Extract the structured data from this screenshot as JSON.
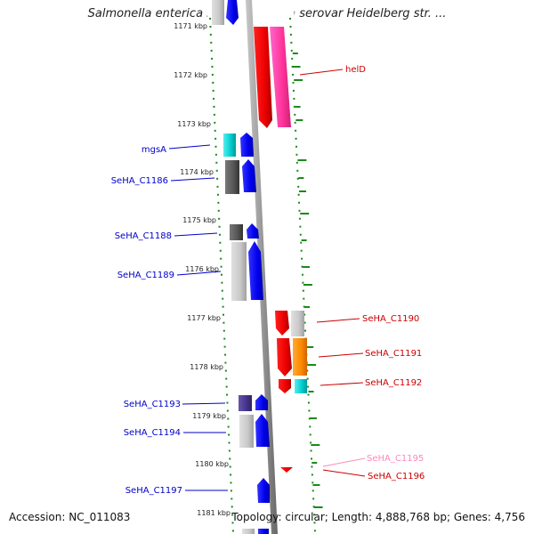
{
  "title": "Salmonella enterica subsp. enterica serovar Heidelberg str. ...",
  "accession": "Accession: NC_011083",
  "topology": "Topology: circular; Length: 4,888,768 bp; Genes: 4,756",
  "ticks": [
    "1171 kbp",
    "1172 kbp",
    "1173 kbp",
    "1174 kbp",
    "1175 kbp",
    "1176 kbp",
    "1177 kbp",
    "1178 kbp",
    "1179 kbp",
    "1180 kbp",
    "1181 kbp"
  ],
  "colors": {
    "forward_label": "#0000cc",
    "reverse_label": "#cc0000",
    "pseudo_label": "#ff88bb",
    "backbone": "#999999",
    "gc_dots": "#1a8a1a"
  },
  "genes": [
    {
      "name": "helD",
      "side": "right",
      "color": "#cc0000"
    },
    {
      "name": "mgsA",
      "side": "left",
      "color": "#0000cc"
    },
    {
      "name": "SeHA_C1186",
      "side": "left",
      "color": "#0000cc"
    },
    {
      "name": "SeHA_C1188",
      "side": "left",
      "color": "#0000cc"
    },
    {
      "name": "SeHA_C1189",
      "side": "left",
      "color": "#0000cc"
    },
    {
      "name": "SeHA_C1190",
      "side": "right",
      "color": "#cc0000"
    },
    {
      "name": "SeHA_C1191",
      "side": "right",
      "color": "#cc0000"
    },
    {
      "name": "SeHA_C1192",
      "side": "right",
      "color": "#cc0000"
    },
    {
      "name": "SeHA_C1193",
      "side": "left",
      "color": "#0000cc"
    },
    {
      "name": "SeHA_C1194",
      "side": "left",
      "color": "#0000cc"
    },
    {
      "name": "SeHA_C1195",
      "side": "right",
      "color": "#ff88bb"
    },
    {
      "name": "SeHA_C1196",
      "side": "right",
      "color": "#cc0000"
    },
    {
      "name": "SeHA_C1197",
      "side": "left",
      "color": "#0000cc"
    }
  ]
}
